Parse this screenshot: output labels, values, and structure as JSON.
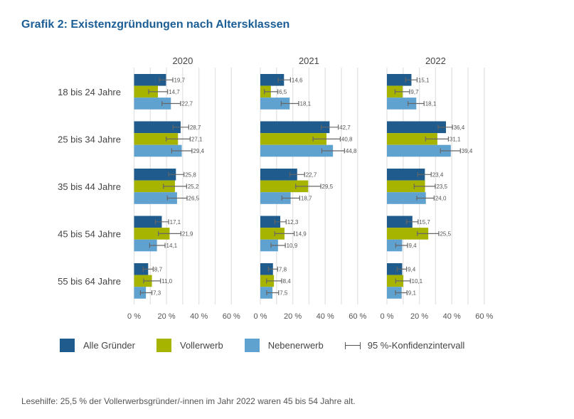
{
  "title": "Grafik 2: Existenzgründungen nach Altersklassen",
  "footnote": "Lesehilfe: 25,5 % der Vollerwerbsgründer/-innen im Jahr 2022 waren 45 bis 54 Jahre alt.",
  "legend": {
    "items": [
      {
        "label": "Alle Gründer",
        "color": "#1f5b8c"
      },
      {
        "label": "Vollerwerb",
        "color": "#a6b400"
      },
      {
        "label": "Nebenerwerb",
        "color": "#60a2cf"
      }
    ],
    "ci_label": "95 %-Konfidenzintervall"
  },
  "chart_data": {
    "type": "bar",
    "orientation": "horizontal",
    "unit": "%",
    "xlim": [
      0,
      60
    ],
    "xticks": [
      "0 %",
      "20 %",
      "40 %",
      "60 %"
    ],
    "grid": true,
    "legend_position": "bottom",
    "categories": [
      "18 bis 24 Jahre",
      "25 bis 34 Jahre",
      "35 bis 44 Jahre",
      "45 bis 54 Jahre",
      "55 bis 64 Jahre"
    ],
    "series_names": [
      "Alle Gründer",
      "Vollerwerb",
      "Nebenerwerb"
    ],
    "panels": [
      {
        "year": "2020",
        "series": [
          {
            "name": "Alle Gründer",
            "values": [
              19.7,
              28.7,
              25.8,
              17.1,
              8.7
            ],
            "ci": [
              [
                15.6,
                23.9
              ],
              [
                24.0,
                33.7
              ],
              [
                21.3,
                30.8
              ],
              [
                13.2,
                21.3
              ],
              [
                5.6,
                11.8
              ]
            ]
          },
          {
            "name": "Vollerwerb",
            "values": [
              14.7,
              27.1,
              25.2,
              21.9,
              11.0
            ],
            "ci": [
              [
                9.0,
                20.7
              ],
              [
                19.8,
                34.6
              ],
              [
                18.1,
                32.4
              ],
              [
                15.0,
                28.9
              ],
              [
                5.9,
                16.3
              ]
            ]
          },
          {
            "name": "Nebenerwerb",
            "values": [
              22.7,
              29.4,
              26.5,
              14.1,
              7.3
            ],
            "ci": [
              [
                17.2,
                28.7
              ],
              [
                23.2,
                35.7
              ],
              [
                20.5,
                32.7
              ],
              [
                9.6,
                19.1
              ],
              [
                3.9,
                11.0
              ]
            ]
          }
        ]
      },
      {
        "year": "2021",
        "series": [
          {
            "name": "Alle Gründer",
            "values": [
              14.6,
              42.7,
              22.7,
              12.3,
              7.8
            ],
            "ci": [
              [
                11.0,
                18.6
              ],
              [
                37.6,
                48.1
              ],
              [
                18.3,
                27.3
              ],
              [
                8.9,
                15.9
              ],
              [
                5.0,
                10.7
              ]
            ]
          },
          {
            "name": "Vollerwerb",
            "values": [
              6.5,
              40.8,
              29.5,
              14.9,
              8.4
            ],
            "ci": [
              [
                2.5,
                10.8
              ],
              [
                32.5,
                49.3
              ],
              [
                21.8,
                37.3
              ],
              [
                8.9,
                20.9
              ],
              [
                3.8,
                13.2
              ]
            ]
          },
          {
            "name": "Nebenerwerb",
            "values": [
              18.1,
              44.8,
              18.7,
              10.9,
              7.5
            ],
            "ci": [
              [
                12.9,
                23.7
              ],
              [
                37.9,
                51.9
              ],
              [
                13.3,
                24.3
              ],
              [
                6.6,
                15.4
              ],
              [
                3.9,
                11.3
              ]
            ]
          }
        ]
      },
      {
        "year": "2022",
        "series": [
          {
            "name": "Alle Gründer",
            "values": [
              15.1,
              36.4,
              23.4,
              15.7,
              9.4
            ],
            "ci": [
              [
                11.5,
                18.6
              ],
              [
                31.6,
                40.4
              ],
              [
                19.0,
                27.3
              ],
              [
                12.1,
                19.2
              ],
              [
                6.3,
                12.1
              ]
            ]
          },
          {
            "name": "Vollerwerb",
            "values": [
              9.7,
              31.1,
              23.5,
              25.5,
              10.1
            ],
            "ci": [
              [
                5.0,
                14.0
              ],
              [
                23.8,
                37.9
              ],
              [
                16.8,
                29.8
              ],
              [
                18.7,
                32.0
              ],
              [
                5.4,
                14.5
              ]
            ]
          },
          {
            "name": "Nebenerwerb",
            "values": [
              18.1,
              39.4,
              24.0,
              9.4,
              9.1
            ],
            "ci": [
              [
                13.0,
                22.9
              ],
              [
                33.0,
                45.3
              ],
              [
                18.4,
                29.1
              ],
              [
                5.4,
                12.7
              ],
              [
                5.3,
                12.4
              ]
            ]
          }
        ]
      }
    ]
  }
}
